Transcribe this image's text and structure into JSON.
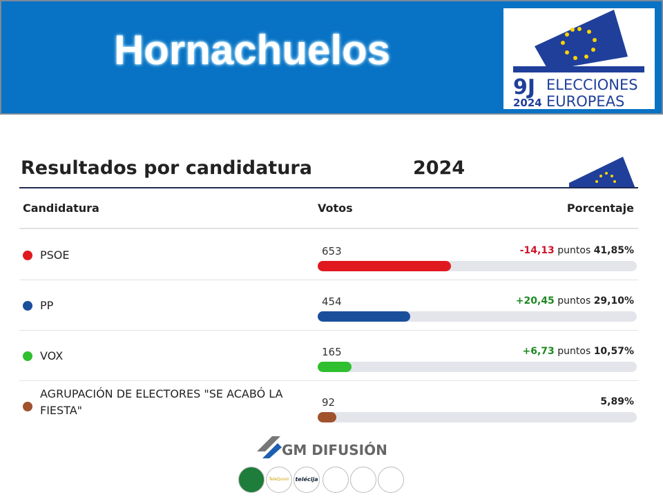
{
  "header": {
    "title": "Hornachuelos",
    "logo": {
      "day": "9J",
      "year": "2024",
      "line1": "ELECCIONES",
      "line2": "EUROPEAS"
    }
  },
  "section": {
    "title": "Resultados por candidatura",
    "year": "2024"
  },
  "table": {
    "columns": [
      "Candidatura",
      "Votos",
      "Porcentaje"
    ],
    "rows": [
      {
        "name": "PSOE",
        "color": "#e0191f",
        "votes": 653,
        "change": "-14,13",
        "change_unit": "puntos",
        "percent": 41.85,
        "percent_label": "41,85%"
      },
      {
        "name": "PP",
        "color": "#1a4f9c",
        "votes": 454,
        "change": "+20,45",
        "change_unit": "puntos",
        "percent": 29.1,
        "percent_label": "29,10%"
      },
      {
        "name": "VOX",
        "color": "#2fbf2f",
        "votes": 165,
        "change": "+6,73",
        "change_unit": "puntos",
        "percent": 10.57,
        "percent_label": "10,57%"
      },
      {
        "name": "AGRUPACIÓN DE ELECTORES \"SE ACABÓ LA FIESTA\"",
        "color": "#a0522d",
        "votes": 92,
        "percent": 5.89,
        "percent_label": "5,89%"
      }
    ]
  },
  "footer": {
    "brand": "GM DIFUSIÓN",
    "partners": [
      "TeleQuivir",
      "telécija"
    ]
  }
}
